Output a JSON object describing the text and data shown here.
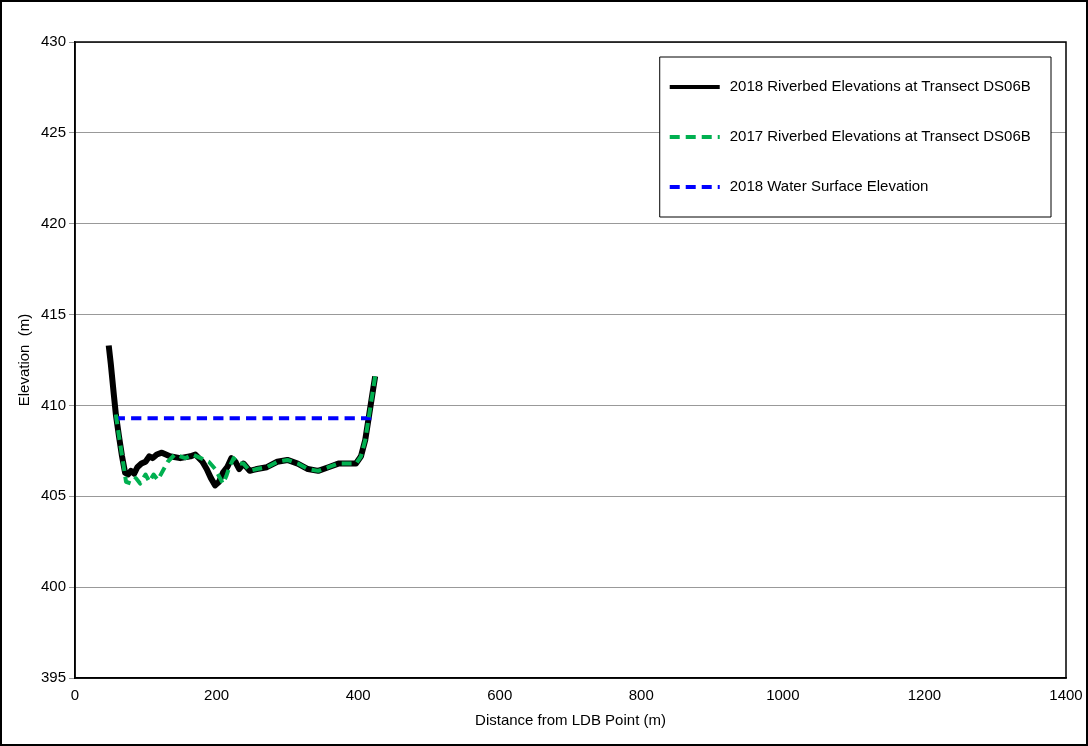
{
  "chart_data": {
    "type": "line",
    "xlabel": "Distance from LDB Point (m)",
    "ylabel": "Elevation  (m)",
    "xlim": [
      0,
      1400
    ],
    "xticks": [
      0,
      200,
      400,
      600,
      800,
      1000,
      1200,
      1400
    ],
    "ylim": [
      395,
      430
    ],
    "yticks": [
      395,
      400,
      405,
      410,
      415,
      420,
      425,
      430
    ],
    "grid": "y",
    "legend": "top right",
    "marker": "none",
    "series": [
      {
        "name": "2018 Riverbed Elevations at Transect DS06B",
        "color": "#000000",
        "line_style": "solid",
        "x": [
          47.6,
          50.5,
          54.8,
          57.7,
          62.1,
          66.4,
          70.7,
          75,
          79,
          83.7,
          88,
          93.8,
          99.6,
          105,
          109.7,
          115.5,
          122.7,
          134,
          148.6,
          163,
          170,
          180,
          186,
          192,
          198,
          203.5,
          209,
          215,
          221,
          226.6,
          232,
          238,
          246.8,
          257,
          271,
          285.7,
          300,
          314.6,
          329,
          343.5,
          358,
          372,
          386.8,
          396.9,
          404,
          410,
          415.6,
          420,
          424
        ],
        "values": [
          413.3,
          412.3,
          410.6,
          409.5,
          408.3,
          407.2,
          406.3,
          406.2,
          406.4,
          406.25,
          406.6,
          406.8,
          406.9,
          407.2,
          407.1,
          407.3,
          407.4,
          407.2,
          407.1,
          407.2,
          407.3,
          406.9,
          406.5,
          406,
          405.6,
          405.8,
          406.3,
          406.6,
          407.1,
          406.9,
          406.5,
          406.8,
          406.4,
          406.5,
          406.6,
          406.9,
          407,
          406.8,
          406.5,
          406.4,
          406.6,
          406.8,
          406.8,
          406.8,
          407.2,
          408.1,
          409.5,
          410.6,
          411.6
        ]
      },
      {
        "name": "2017 Riverbed Elevations at Transect DS06B",
        "color": "#00b050",
        "line_style": "dashed",
        "x": [
          57.7,
          62.1,
          67.8,
          72,
          79,
          86,
          92,
          99.6,
          105,
          111,
          117,
          131,
          141,
          156,
          166,
          177.5,
          189,
          198,
          203.5,
          209,
          213.6,
          218,
          224,
          232,
          238,
          246.8,
          257,
          271,
          285.7,
          300,
          314.6,
          329,
          343.5,
          358,
          372,
          386.8,
          396.9,
          404,
          410,
          415.6,
          420,
          424
        ],
        "values": [
          409.5,
          408.3,
          406.9,
          405.8,
          405.7,
          406,
          405.7,
          406.2,
          405.8,
          406.2,
          405.9,
          406.9,
          407.3,
          407.1,
          407.3,
          407.1,
          406.9,
          406.5,
          406.1,
          405.7,
          406.1,
          406.6,
          407.1,
          406.8,
          406.8,
          406.4,
          406.5,
          406.6,
          406.9,
          407,
          406.8,
          406.5,
          406.4,
          406.6,
          406.8,
          406.8,
          406.8,
          407.2,
          408.1,
          409.5,
          410.6,
          411.6
        ]
      },
      {
        "name": "2018 Water Surface Elevation",
        "color": "#0000ff",
        "line_style": "dashed",
        "x": [
          56,
          418.5
        ],
        "values": [
          409.3,
          409.3
        ]
      }
    ]
  }
}
